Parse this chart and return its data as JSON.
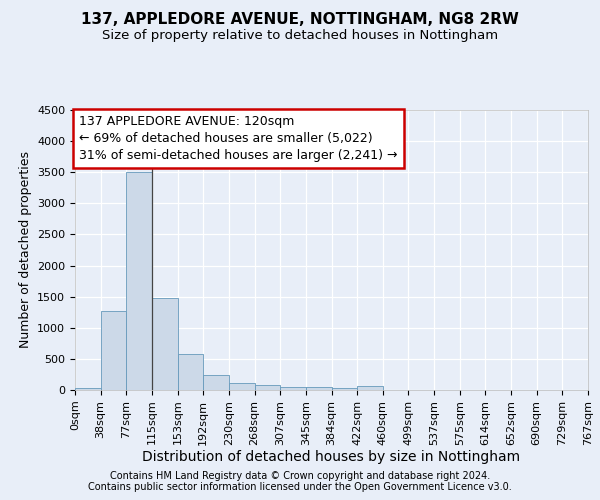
{
  "title1": "137, APPLEDORE AVENUE, NOTTINGHAM, NG8 2RW",
  "title2": "Size of property relative to detached houses in Nottingham",
  "xlabel": "Distribution of detached houses by size in Nottingham",
  "ylabel": "Number of detached properties",
  "bar_values": [
    35,
    1270,
    3500,
    1480,
    575,
    235,
    115,
    80,
    55,
    45,
    40,
    65,
    0,
    0,
    0,
    0,
    0,
    0,
    0,
    0
  ],
  "bin_labels": [
    "0sqm",
    "38sqm",
    "77sqm",
    "115sqm",
    "153sqm",
    "192sqm",
    "230sqm",
    "268sqm",
    "307sqm",
    "345sqm",
    "384sqm",
    "422sqm",
    "460sqm",
    "499sqm",
    "537sqm",
    "575sqm",
    "614sqm",
    "652sqm",
    "690sqm",
    "729sqm",
    "767sqm"
  ],
  "bar_color": "#ccd9e8",
  "bar_edge_color": "#6699bb",
  "annotation_line1": "137 APPLEDORE AVENUE: 120sqm",
  "annotation_line2": "← 69% of detached houses are smaller (5,022)",
  "annotation_line3": "31% of semi-detached houses are larger (2,241) →",
  "annotation_box_color": "#ffffff",
  "annotation_box_edge": "#cc0000",
  "property_line_x": 2.5,
  "ylim": [
    0,
    4500
  ],
  "yticks": [
    0,
    500,
    1000,
    1500,
    2000,
    2500,
    3000,
    3500,
    4000,
    4500
  ],
  "bg_color": "#e8eef8",
  "plot_bg_color": "#e8eef8",
  "footer1": "Contains HM Land Registry data © Crown copyright and database right 2024.",
  "footer2": "Contains public sector information licensed under the Open Government Licence v3.0.",
  "title1_fontsize": 11,
  "title2_fontsize": 9.5,
  "tick_label_fontsize": 8,
  "ylabel_fontsize": 9,
  "xlabel_fontsize": 10,
  "footer_fontsize": 7,
  "annotation_fontsize": 9
}
